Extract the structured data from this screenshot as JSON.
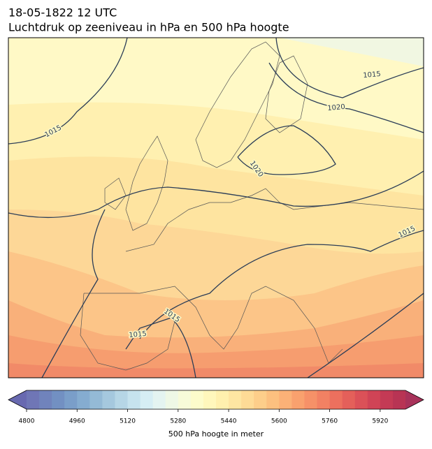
{
  "header": {
    "line1": "18-05-1822 12 UTC",
    "line2": "Luchtdruk op zeeniveau in hPa en 500 hPa hoogte"
  },
  "map": {
    "contour_labels": [
      "1015",
      "1015",
      "1020",
      "1020",
      "1015",
      "1015",
      "1015"
    ]
  },
  "colorbar": {
    "label": "500 hPa hoogte in meter",
    "range": [
      4800,
      6000
    ],
    "ticks": [
      4800,
      4960,
      5120,
      5280,
      5440,
      5600,
      5760,
      5920
    ],
    "colors": [
      "#6f76b6",
      "#7083bc",
      "#7290c2",
      "#7a9ec9",
      "#85acd0",
      "#94bad6",
      "#a5c8de",
      "#b6d6e6",
      "#c6e3ee",
      "#d6eef4",
      "#e4f4f1",
      "#eef8e6",
      "#f7fbd9",
      "#fdfccb",
      "#fff7bc",
      "#fff0ae",
      "#fee6a2",
      "#fedb96",
      "#fdce8a",
      "#fcc07f",
      "#fbb177",
      "#f9a16e",
      "#f69168",
      "#f28163",
      "#ec705e",
      "#e4605a",
      "#db5158",
      "#d04456",
      "#c43a55",
      "#b83454"
    ],
    "under_color": "#6869b0",
    "over_color": "#a8325a"
  }
}
